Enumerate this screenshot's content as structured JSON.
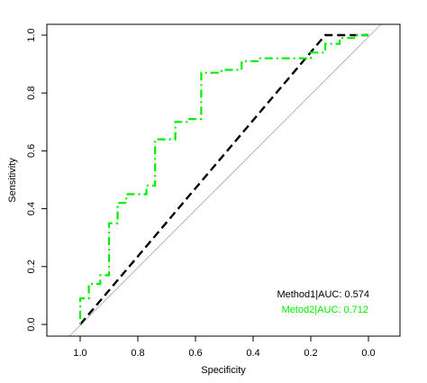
{
  "chart_data": {
    "type": "line",
    "xlabel": "Specificity",
    "ylabel": "Sensitivity",
    "xlim": [
      1.0,
      0.0
    ],
    "ylim": [
      0.0,
      1.0
    ],
    "x_reversed": true,
    "x_ticks": [
      "1.0",
      "0.8",
      "0.6",
      "0.4",
      "0.2",
      "0.0"
    ],
    "y_ticks": [
      "0.0",
      "0.2",
      "0.4",
      "0.6",
      "0.8",
      "1.0"
    ],
    "grid": false,
    "reference_line": {
      "color": "#aaaaaa"
    },
    "legend_position": "bottom-right",
    "series": [
      {
        "name": "Method1|AUC: 0.574",
        "color": "#000000",
        "dash": "dashed",
        "points": [
          [
            1.0,
            0.0
          ],
          [
            0.15,
            1.0
          ],
          [
            0.0,
            1.0
          ]
        ]
      },
      {
        "name": "Metod2|AUC: 0.712",
        "color": "#00ee00",
        "dash": "dotdash",
        "points": [
          [
            1.0,
            0.0
          ],
          [
            1.0,
            0.09
          ],
          [
            0.97,
            0.09
          ],
          [
            0.97,
            0.14
          ],
          [
            0.93,
            0.14
          ],
          [
            0.93,
            0.17
          ],
          [
            0.9,
            0.17
          ],
          [
            0.9,
            0.35
          ],
          [
            0.87,
            0.35
          ],
          [
            0.87,
            0.42
          ],
          [
            0.84,
            0.42
          ],
          [
            0.84,
            0.45
          ],
          [
            0.77,
            0.45
          ],
          [
            0.77,
            0.48
          ],
          [
            0.74,
            0.48
          ],
          [
            0.74,
            0.64
          ],
          [
            0.67,
            0.64
          ],
          [
            0.67,
            0.7
          ],
          [
            0.63,
            0.7
          ],
          [
            0.63,
            0.71
          ],
          [
            0.58,
            0.71
          ],
          [
            0.58,
            0.87
          ],
          [
            0.51,
            0.87
          ],
          [
            0.51,
            0.88
          ],
          [
            0.44,
            0.88
          ],
          [
            0.44,
            0.91
          ],
          [
            0.38,
            0.91
          ],
          [
            0.38,
            0.92
          ],
          [
            0.2,
            0.92
          ],
          [
            0.2,
            0.94
          ],
          [
            0.15,
            0.94
          ],
          [
            0.15,
            0.97
          ],
          [
            0.1,
            0.97
          ],
          [
            0.1,
            0.99
          ],
          [
            0.05,
            0.99
          ],
          [
            0.05,
            1.0
          ],
          [
            0.0,
            1.0
          ]
        ]
      }
    ]
  }
}
